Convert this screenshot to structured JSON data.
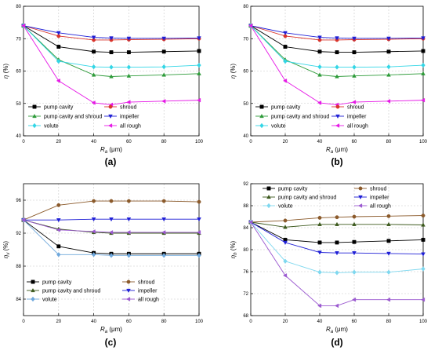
{
  "chart_data": [
    {
      "type": "line",
      "panel_label": "(a)",
      "ylabel": "η (%)",
      "xlabel": "R_a (μm)",
      "xlabel_main": "R",
      "xlabel_sub": "a",
      "xlabel_unit": "(μm)",
      "ylabel_main": "η",
      "ylabel_sub": "",
      "ylabel_unit": "(%)",
      "xlim": [
        0,
        100
      ],
      "ylim": [
        40,
        80
      ],
      "xticks": [
        0,
        20,
        40,
        60,
        80,
        100
      ],
      "yticks": [
        40,
        50,
        60,
        70,
        80
      ],
      "grid": true,
      "legend_placement": "bottom-center",
      "x": [
        0,
        20,
        40,
        50,
        60,
        80,
        100
      ],
      "series": [
        {
          "name": "pump cavity",
          "color": "#000000",
          "marker": "square",
          "values": [
            74.0,
            67.5,
            66.0,
            65.8,
            65.8,
            66.0,
            66.2
          ]
        },
        {
          "name": "shroud",
          "color": "#d9342b",
          "marker": "circle",
          "values": [
            74.0,
            70.8,
            69.6,
            69.6,
            69.7,
            69.8,
            70.0
          ]
        },
        {
          "name": "pump cavity and shroud",
          "color": "#2e9b3a",
          "marker": "triangle-up",
          "values": [
            74.0,
            63.5,
            58.8,
            58.3,
            58.5,
            58.8,
            59.2
          ]
        },
        {
          "name": "impeller",
          "color": "#1f1fd6",
          "marker": "triangle-down",
          "values": [
            74.0,
            71.8,
            70.4,
            70.2,
            70.1,
            70.1,
            70.2
          ]
        },
        {
          "name": "volute",
          "color": "#33d6e6",
          "marker": "diamond",
          "values": [
            74.0,
            63.0,
            61.3,
            61.2,
            61.2,
            61.3,
            61.8
          ]
        },
        {
          "name": "all rough",
          "color": "#e619e6",
          "marker": "triangle-left",
          "values": [
            74.0,
            57.0,
            50.2,
            49.6,
            50.4,
            50.7,
            51.0
          ]
        }
      ]
    },
    {
      "type": "line",
      "panel_label": "(b)",
      "ylabel": "η (%)",
      "xlabel": "R_a (μm)",
      "xlabel_main": "R",
      "xlabel_sub": "a",
      "xlabel_unit": "(μm)",
      "ylabel_main": "η",
      "ylabel_sub": "",
      "ylabel_unit": "(%)",
      "xlim": [
        0,
        100
      ],
      "ylim": [
        40,
        80
      ],
      "xticks": [
        0,
        20,
        40,
        60,
        80,
        100
      ],
      "yticks": [
        40,
        50,
        60,
        70,
        80
      ],
      "grid": true,
      "legend_placement": "bottom-center",
      "x": [
        0,
        20,
        40,
        50,
        60,
        80,
        100
      ],
      "series": [
        {
          "name": "pump cavity",
          "color": "#000000",
          "marker": "square",
          "values": [
            74.0,
            67.5,
            66.0,
            65.8,
            65.8,
            66.0,
            66.2
          ]
        },
        {
          "name": "shroud",
          "color": "#d9342b",
          "marker": "circle",
          "values": [
            74.0,
            70.8,
            69.6,
            69.6,
            69.7,
            69.8,
            70.0
          ]
        },
        {
          "name": "pump cavity and shroud",
          "color": "#2e9b3a",
          "marker": "triangle-up",
          "values": [
            74.0,
            63.5,
            58.8,
            58.3,
            58.5,
            58.8,
            59.2
          ]
        },
        {
          "name": "impeller",
          "color": "#1f1fd6",
          "marker": "triangle-down",
          "values": [
            74.0,
            71.8,
            70.4,
            70.2,
            70.1,
            70.1,
            70.2
          ]
        },
        {
          "name": "volute",
          "color": "#33d6e6",
          "marker": "diamond",
          "values": [
            74.0,
            63.0,
            61.3,
            61.2,
            61.2,
            61.3,
            61.8
          ]
        },
        {
          "name": "all rough",
          "color": "#e619e6",
          "marker": "triangle-left",
          "values": [
            74.0,
            57.0,
            50.2,
            49.6,
            50.4,
            50.7,
            51.0
          ]
        }
      ]
    },
    {
      "type": "line",
      "panel_label": "(c)",
      "ylabel": "η_v (%)",
      "xlabel": "R_a (μm)",
      "xlabel_main": "R",
      "xlabel_sub": "a",
      "xlabel_unit": "(μm)",
      "ylabel_main": "η",
      "ylabel_sub": "v",
      "ylabel_unit": "(%)",
      "xlim": [
        0,
        100
      ],
      "ylim": [
        82,
        98
      ],
      "xticks": [
        0,
        20,
        40,
        60,
        80,
        100
      ],
      "yticks": [
        84,
        88,
        92,
        96
      ],
      "grid": true,
      "legend_placement": "bottom-center",
      "x": [
        0,
        20,
        40,
        50,
        60,
        80,
        100
      ],
      "series": [
        {
          "name": "pump cavity",
          "color": "#000000",
          "marker": "square",
          "values": [
            93.6,
            90.4,
            89.6,
            89.5,
            89.5,
            89.5,
            89.5
          ]
        },
        {
          "name": "shroud",
          "color": "#8b5a2b",
          "marker": "circle",
          "values": [
            93.6,
            95.4,
            95.9,
            95.9,
            95.9,
            95.9,
            95.8
          ]
        },
        {
          "name": "pump cavity and shroud",
          "color": "#3d5a1e",
          "marker": "triangle-up",
          "values": [
            93.6,
            92.5,
            92.1,
            92.0,
            92.0,
            92.0,
            92.0
          ]
        },
        {
          "name": "impeller",
          "color": "#1f1fd6",
          "marker": "triangle-down",
          "values": [
            93.6,
            93.6,
            93.7,
            93.7,
            93.7,
            93.7,
            93.7
          ]
        },
        {
          "name": "volute",
          "color": "#6fa8dc",
          "marker": "diamond",
          "values": [
            93.6,
            89.4,
            89.4,
            89.3,
            89.3,
            89.3,
            89.3
          ]
        },
        {
          "name": "all rough",
          "color": "#9b59d0",
          "marker": "triangle-left",
          "values": [
            93.6,
            92.4,
            92.2,
            92.1,
            92.1,
            92.1,
            92.1
          ]
        }
      ]
    },
    {
      "type": "line",
      "panel_label": "(d)",
      "ylabel": "η_h (%)",
      "xlabel": "R_a (μm)",
      "xlabel_main": "R",
      "xlabel_sub": "a",
      "xlabel_unit": "(μm)",
      "ylabel_main": "η",
      "ylabel_sub": "h",
      "ylabel_unit": "(%)",
      "xlim": [
        0,
        100
      ],
      "ylim": [
        68,
        92
      ],
      "xticks": [
        0,
        20,
        40,
        60,
        80,
        100
      ],
      "yticks": [
        68,
        72,
        76,
        80,
        84,
        88,
        92
      ],
      "grid": true,
      "legend_placement": "top-center",
      "x": [
        0,
        20,
        40,
        50,
        60,
        80,
        100
      ],
      "series": [
        {
          "name": "pump cavity",
          "color": "#000000",
          "marker": "square",
          "values": [
            85.0,
            81.8,
            81.3,
            81.3,
            81.4,
            81.6,
            81.8
          ]
        },
        {
          "name": "shroud",
          "color": "#8b5a2b",
          "marker": "circle",
          "values": [
            85.0,
            85.3,
            85.8,
            85.9,
            86.0,
            86.1,
            86.2
          ]
        },
        {
          "name": "pump cavity and shroud",
          "color": "#3d5a1e",
          "marker": "triangle-up",
          "values": [
            85.0,
            84.1,
            84.6,
            84.6,
            84.6,
            84.6,
            84.5
          ]
        },
        {
          "name": "impeller",
          "color": "#1f1fd6",
          "marker": "triangle-down",
          "values": [
            85.0,
            81.3,
            79.5,
            79.4,
            79.4,
            79.3,
            79.2
          ]
        },
        {
          "name": "volute",
          "color": "#7fd8ef",
          "marker": "diamond",
          "values": [
            85.0,
            77.9,
            75.9,
            75.8,
            75.9,
            75.9,
            76.5
          ]
        },
        {
          "name": "all rough",
          "color": "#9b59d0",
          "marker": "triangle-left",
          "values": [
            85.0,
            75.3,
            69.8,
            69.8,
            70.9,
            70.9,
            70.9
          ]
        }
      ]
    }
  ]
}
